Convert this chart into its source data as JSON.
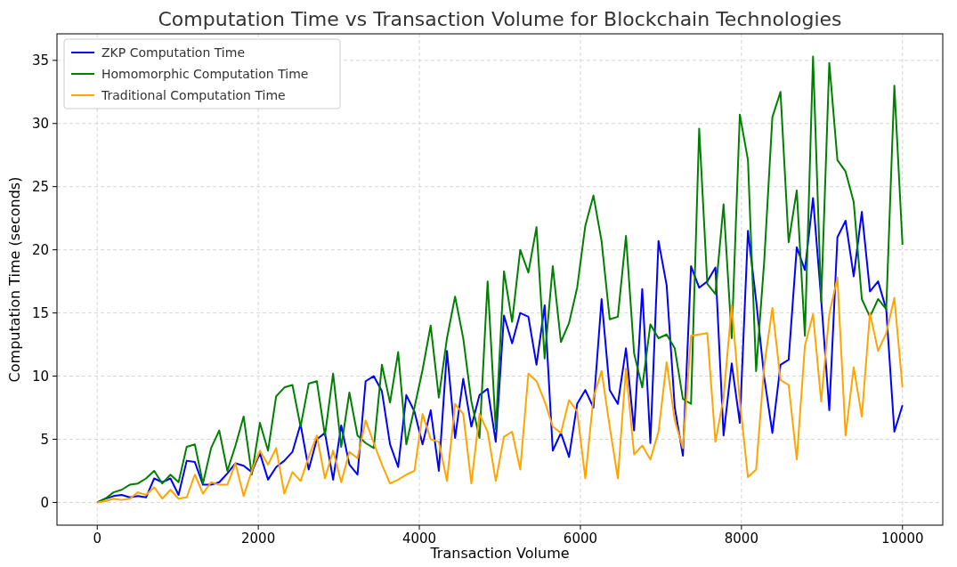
{
  "chart_data": {
    "type": "line",
    "title": "Computation Time vs Transaction Volume for Blockchain Technologies",
    "xlabel": "Transaction Volume",
    "ylabel": "Computation Time (seconds)",
    "x": [
      0,
      101,
      202,
      303,
      404,
      505,
      606,
      707,
      808,
      909,
      1010,
      1111,
      1212,
      1313,
      1414,
      1515,
      1616,
      1717,
      1818,
      1919,
      2020,
      2121,
      2222,
      2323,
      2424,
      2525,
      2626,
      2727,
      2828,
      2929,
      3030,
      3131,
      3232,
      3333,
      3434,
      3535,
      3636,
      3737,
      3838,
      3939,
      4040,
      4141,
      4242,
      4343,
      4444,
      4545,
      4646,
      4747,
      4848,
      4949,
      5051,
      5152,
      5253,
      5354,
      5455,
      5556,
      5657,
      5758,
      5859,
      5960,
      6061,
      6162,
      6263,
      6364,
      6465,
      6566,
      6667,
      6768,
      6869,
      6970,
      7071,
      7172,
      7273,
      7374,
      7475,
      7576,
      7677,
      7778,
      7879,
      7980,
      8081,
      8182,
      8283,
      8384,
      8485,
      8586,
      8687,
      8788,
      8889,
      8990,
      9091,
      9192,
      9293,
      9394,
      9495,
      9596,
      9697,
      9798,
      9899,
      10000
    ],
    "series": [
      {
        "name": "ZKP Computation Time",
        "color": "#0000ff",
        "values": [
          0,
          0.3,
          0.5,
          0.6,
          0.4,
          0.5,
          0.4,
          1.9,
          1.6,
          1.9,
          0.6,
          3.3,
          3.2,
          1.4,
          1.4,
          1.6,
          2.3,
          3.1,
          2.9,
          2.4,
          3.9,
          1.8,
          2.8,
          3.3,
          4.0,
          6.2,
          2.6,
          5.0,
          5.5,
          1.8,
          6.1,
          3.0,
          2.2,
          9.6,
          10.0,
          8.8,
          4.6,
          2.8,
          8.5,
          7.2,
          4.6,
          7.3,
          2.5,
          12.0,
          5.1,
          9.8,
          6.0,
          8.5,
          9.0,
          4.8,
          14.8,
          12.6,
          15.0,
          14.7,
          10.9,
          15.6,
          4.1,
          5.5,
          3.6,
          7.8,
          8.9,
          7.5,
          16.1,
          8.9,
          7.8,
          12.2,
          5.7,
          16.9,
          4.7,
          20.7,
          17.2,
          7.5,
          3.7,
          18.7,
          17.0,
          17.5,
          18.6,
          5.3,
          11.0,
          6.3,
          21.5,
          16.0,
          9.9,
          5.5,
          10.9,
          11.3,
          20.2,
          18.4,
          24.1,
          16.1,
          7.3,
          21.0,
          22.3,
          17.9,
          23.0,
          16.7,
          17.5,
          15.3,
          5.6,
          7.7
        ]
      },
      {
        "name": "Homomorphic Computation Time",
        "color": "#008000",
        "values": [
          0,
          0.3,
          0.8,
          1.0,
          1.4,
          1.5,
          1.9,
          2.5,
          1.5,
          2.2,
          1.6,
          4.4,
          4.6,
          1.5,
          4.3,
          5.7,
          2.5,
          4.5,
          6.8,
          2.2,
          6.3,
          4.1,
          8.4,
          9.1,
          9.3,
          6.0,
          9.4,
          9.6,
          5.3,
          10.2,
          4.4,
          8.7,
          5.3,
          4.7,
          4.3,
          10.9,
          7.9,
          11.9,
          4.6,
          7.5,
          10.5,
          14.0,
          8.3,
          13.0,
          16.3,
          13.0,
          8.0,
          5.1,
          17.5,
          5.8,
          18.3,
          14.3,
          20.0,
          18.2,
          21.8,
          11.4,
          18.7,
          12.7,
          14.2,
          17.0,
          21.9,
          24.3,
          20.7,
          14.5,
          14.7,
          21.1,
          11.8,
          9.1,
          14.1,
          13.0,
          13.3,
          12.2,
          8.2,
          7.8,
          29.6,
          17.3,
          16.5,
          23.6,
          13.0,
          30.7,
          27.1,
          10.4,
          19.1,
          30.5,
          32.5,
          20.6,
          24.7,
          13.2,
          35.3,
          15.9,
          34.8,
          27.1,
          26.2,
          23.8,
          16.1,
          14.7,
          16.1,
          15.3,
          33.0,
          20.4
        ]
      },
      {
        "name": "Traditional Computation Time",
        "color": "#ffa500",
        "values": [
          0,
          0.1,
          0.3,
          0.2,
          0.3,
          0.8,
          0.6,
          1.2,
          0.3,
          1.0,
          0.3,
          0.4,
          2.2,
          0.7,
          1.6,
          1.4,
          1.4,
          3.1,
          0.5,
          2.5,
          4.1,
          3.0,
          4.3,
          0.7,
          2.4,
          1.7,
          3.6,
          5.3,
          1.9,
          4.1,
          1.6,
          4.0,
          3.5,
          6.5,
          4.7,
          3.0,
          1.5,
          1.8,
          2.2,
          2.5,
          7.0,
          5.0,
          4.8,
          1.7,
          7.8,
          7.0,
          1.5,
          7.0,
          5.6,
          1.7,
          5.2,
          5.6,
          2.6,
          10.2,
          9.6,
          8.0,
          6.0,
          5.5,
          8.1,
          7.2,
          1.9,
          8.3,
          10.4,
          6.0,
          1.9,
          10.6,
          3.8,
          4.5,
          3.4,
          5.6,
          11.1,
          6.5,
          4.3,
          13.2,
          13.3,
          13.4,
          4.8,
          8.3,
          15.6,
          8.0,
          2.0,
          2.6,
          10.8,
          15.4,
          9.7,
          9.3,
          3.4,
          12.4,
          14.9,
          8.0,
          14.9,
          17.8,
          5.3,
          10.7,
          6.8,
          15.0,
          12.0,
          13.4,
          16.2,
          9.1
        ]
      }
    ],
    "xlim": [
      -500,
      10500
    ],
    "xticks": [
      0,
      2000,
      4000,
      6000,
      8000,
      10000
    ],
    "ylim": [
      -1.8,
      37.1
    ],
    "yticks": [
      0,
      5,
      10,
      15,
      20,
      25,
      30,
      35
    ],
    "grid": true,
    "legend": "top left",
    "line_style": "solid",
    "marker": "none"
  }
}
